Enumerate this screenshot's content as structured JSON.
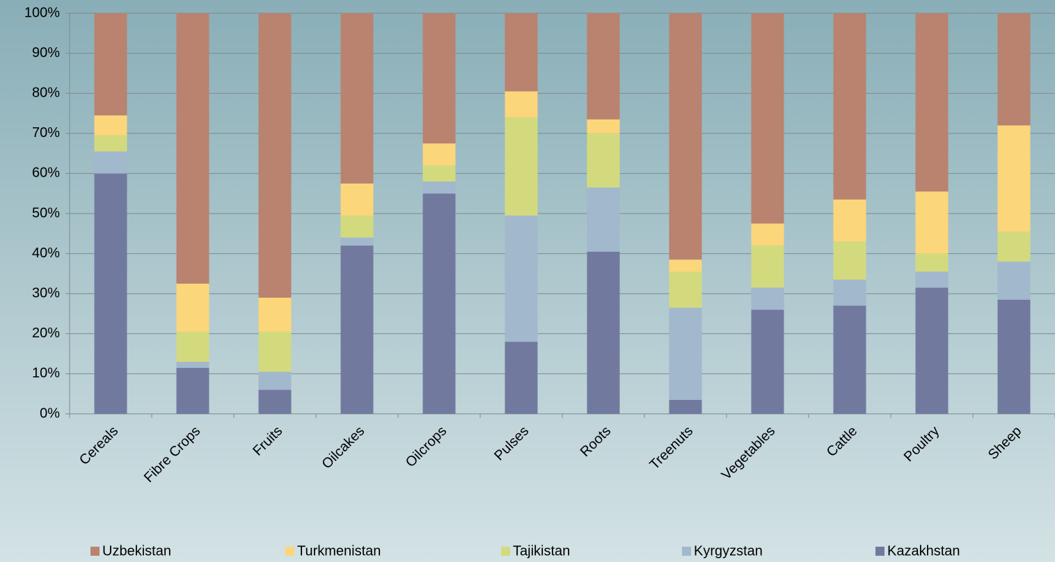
{
  "chart_data": {
    "type": "stacked_bar_100",
    "categories": [
      "Cereals",
      "Fibre Crops",
      "Fruits",
      "Oilcakes",
      "Oilcrops",
      "Pulses",
      "Roots",
      "Treenuts",
      "Vegetables",
      "Cattle",
      "Poultry",
      "Sheep"
    ],
    "series": [
      {
        "name": "Uzbekistan",
        "color": "#b9836f",
        "values": [
          25.5,
          67.5,
          71,
          42.5,
          32.5,
          19.5,
          26.5,
          61.5,
          52.5,
          46.5,
          44.5,
          28
        ]
      },
      {
        "name": "Turkmenistan",
        "color": "#fcd67a",
        "values": [
          5,
          12,
          8.5,
          8,
          5.5,
          6.5,
          3.5,
          3,
          5.5,
          10.5,
          15.5,
          26.5
        ]
      },
      {
        "name": "Tajikistan",
        "color": "#d3da7e",
        "values": [
          4,
          7.5,
          10,
          5.5,
          4,
          24.5,
          13.5,
          9,
          10.5,
          9.5,
          4.5,
          7.5
        ]
      },
      {
        "name": "Kyrgyzstan",
        "color": "#a2b8cc",
        "values": [
          5.5,
          1.5,
          4.5,
          2,
          3,
          31.5,
          16,
          23,
          5.5,
          6.5,
          4,
          9.5
        ]
      },
      {
        "name": "Kazakhstan",
        "color": "#717a9e",
        "values": [
          60,
          11.5,
          6,
          42,
          55,
          18,
          40.5,
          3.5,
          26,
          27,
          31.5,
          28.5
        ]
      }
    ],
    "ylim": [
      0,
      100
    ],
    "yticks": [
      {
        "value": 0,
        "label": "0%"
      },
      {
        "value": 10,
        "label": "10%"
      },
      {
        "value": 20,
        "label": "20%"
      },
      {
        "value": 30,
        "label": "30%"
      },
      {
        "value": 40,
        "label": "40%"
      },
      {
        "value": 50,
        "label": "50%"
      },
      {
        "value": 60,
        "label": "60%"
      },
      {
        "value": 70,
        "label": "70%"
      },
      {
        "value": 80,
        "label": "80%"
      },
      {
        "value": 90,
        "label": "90%"
      },
      {
        "value": 100,
        "label": "100%"
      }
    ],
    "grid": true,
    "legend": "bottom"
  }
}
